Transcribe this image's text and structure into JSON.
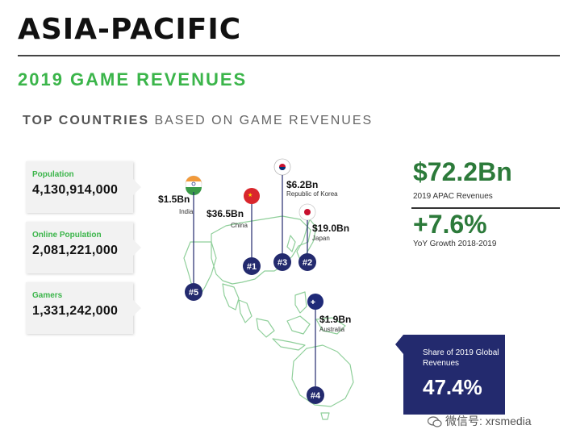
{
  "header": {
    "title": "ASIA-PACIFIC",
    "subtitle": "2019 GAME REVENUES",
    "section_strong": "TOP COUNTRIES",
    "section_rest": "BASED ON GAME REVENUES"
  },
  "stats": [
    {
      "label": "Population",
      "value": "4,130,914,000"
    },
    {
      "label": "Online Population",
      "value": "2,081,221,000"
    },
    {
      "label": "Gamers",
      "value": "1,331,242,000"
    }
  ],
  "summary": {
    "apac_value": "$72.2Bn",
    "apac_label": "2019 APAC Revenues",
    "growth_value": "+7.6%",
    "growth_label": "YoY Growth 2018-2019",
    "share_label": "Share of 2019 Global Revenues",
    "share_value": "47.4%"
  },
  "watermark": "微信号: xrsmedia",
  "colors": {
    "accent_green": "#3bb54a",
    "dark_green": "#2c7a3a",
    "navy": "#232a6e",
    "map_stroke": "#8fcf9a"
  },
  "chart_data": {
    "type": "table",
    "title": "TOP COUNTRIES BASED ON GAME REVENUES",
    "columns": [
      "rank",
      "country",
      "revenue"
    ],
    "rows": [
      {
        "rank": "#1",
        "country": "China",
        "revenue": "$36.5Bn",
        "value": 36.5
      },
      {
        "rank": "#2",
        "country": "Japan",
        "revenue": "$19.0Bn",
        "value": 19.0
      },
      {
        "rank": "#3",
        "country": "Republic of Korea",
        "revenue": "$6.2Bn",
        "value": 6.2
      },
      {
        "rank": "#4",
        "country": "Australia",
        "revenue": "$1.9Bn",
        "value": 1.9
      },
      {
        "rank": "#5",
        "country": "India",
        "revenue": "$1.5Bn",
        "value": 1.5
      }
    ],
    "unit": "Bn USD"
  }
}
